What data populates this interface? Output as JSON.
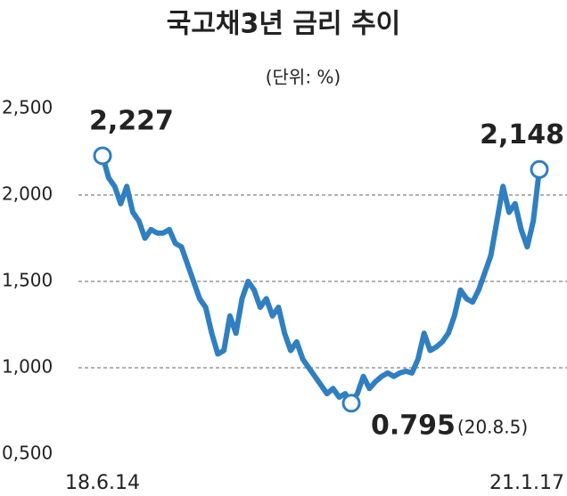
{
  "chart_data": {
    "type": "line",
    "title": "국고채3년 금리 추이",
    "subtitle": "(단위: %)",
    "categories": [
      "18.6.14",
      null,
      null,
      null,
      null,
      null,
      null,
      null,
      null,
      null,
      null,
      null,
      null,
      null,
      null,
      null,
      null,
      null,
      null,
      null,
      null,
      null,
      null,
      null,
      null,
      null,
      null,
      null,
      null,
      null,
      null,
      null,
      null,
      null,
      null,
      null,
      null,
      null,
      null,
      null,
      null,
      null,
      null,
      null,
      null,
      null,
      null,
      null,
      null,
      null,
      null,
      null,
      null,
      null,
      null,
      null,
      null,
      null,
      null,
      null,
      null,
      null,
      null,
      null,
      null,
      null,
      null,
      null,
      null,
      null,
      null,
      null,
      "21.1.17"
    ],
    "series": [
      {
        "color": "#2f7fc1",
        "values": [
          2.227,
          2.1,
          2.05,
          1.95,
          2.05,
          1.9,
          1.85,
          1.75,
          1.8,
          1.78,
          1.78,
          1.8,
          1.72,
          1.7,
          1.6,
          1.5,
          1.4,
          1.35,
          1.2,
          1.08,
          1.1,
          1.3,
          1.2,
          1.4,
          1.5,
          1.45,
          1.35,
          1.4,
          1.3,
          1.35,
          1.2,
          1.1,
          1.15,
          1.05,
          1.0,
          0.95,
          0.9,
          0.85,
          0.88,
          0.83,
          0.85,
          0.795,
          0.85,
          0.95,
          0.88,
          0.92,
          0.95,
          0.97,
          0.95,
          0.97,
          0.98,
          0.97,
          1.05,
          1.2,
          1.1,
          1.12,
          1.15,
          1.2,
          1.3,
          1.45,
          1.4,
          1.38,
          1.45,
          1.55,
          1.65,
          1.85,
          2.05,
          1.9,
          1.95,
          1.8,
          1.7,
          1.85,
          2.148
        ],
        "value_labels": [
          "2,227",
          null,
          null,
          null,
          null,
          null,
          null,
          null,
          null,
          null,
          null,
          null,
          null,
          null,
          null,
          null,
          null,
          null,
          null,
          null,
          null,
          null,
          null,
          null,
          null,
          null,
          null,
          null,
          null,
          null,
          null,
          null,
          null,
          null,
          null,
          null,
          null,
          null,
          null,
          null,
          null,
          "0.795",
          null,
          null,
          null,
          null,
          null,
          null,
          null,
          null,
          null,
          null,
          null,
          null,
          null,
          null,
          null,
          null,
          null,
          null,
          null,
          null,
          null,
          null,
          null,
          null,
          null,
          null,
          null,
          null,
          null,
          null,
          "2,148"
        ]
      }
    ],
    "annotations": [
      "(20.8.5)"
    ],
    "ylim": [
      0.5,
      2.5
    ],
    "yticks": [
      {
        "value": 0.5,
        "label": "0,500"
      },
      {
        "value": 1.0,
        "label": "1,000"
      },
      {
        "value": 1.5,
        "label": "1,500"
      },
      {
        "value": 2.0,
        "label": "2,000"
      },
      {
        "value": 2.5,
        "label": "2,500"
      }
    ],
    "grid": true
  }
}
